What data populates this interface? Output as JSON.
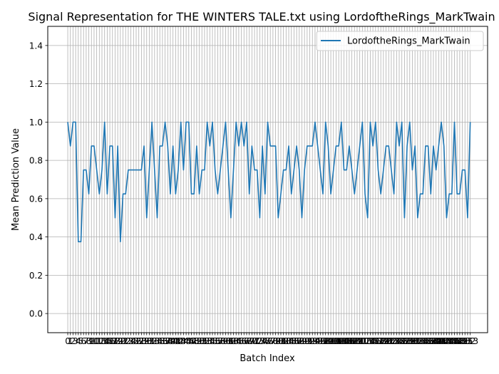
{
  "chart_data": {
    "type": "line",
    "title": "Signal Representation for THE WINTERS TALE.txt using LordoftheRings_MarkTwain",
    "xlabel": "Batch Index",
    "ylabel": "Mean Prediction Value",
    "xlim": [
      -3.8,
      79.8
    ],
    "ylim": [
      -0.1,
      1.5
    ],
    "yticks": [
      0.0,
      0.2,
      0.4,
      0.6,
      0.8,
      1.0,
      1.2,
      1.4
    ],
    "ytick_labels": [
      "0.0",
      "0.2",
      "0.4",
      "0.6",
      "0.8",
      "1.0",
      "1.2",
      "1.4"
    ],
    "grid": true,
    "legend_placement": "top-right",
    "series": [
      {
        "name": "LordoftheRings_MarkTwain",
        "color": "#1f77b4",
        "values": [
          1.0,
          0.875,
          1.0,
          1.0,
          0.375,
          0.375,
          0.75,
          0.75,
          0.625,
          0.875,
          0.875,
          0.75,
          0.625,
          0.75,
          1.0,
          0.625,
          0.875,
          0.875,
          0.5,
          0.875,
          0.375,
          0.625,
          0.625,
          0.75,
          0.75,
          0.75,
          0.75,
          0.75,
          0.75,
          0.875,
          0.5,
          0.75,
          1.0,
          0.75,
          0.5,
          0.875,
          0.875,
          1.0,
          0.875,
          0.625,
          0.875,
          0.625,
          0.75,
          1.0,
          0.75,
          1.0,
          1.0,
          0.625,
          0.625,
          0.875,
          0.625,
          0.75,
          0.75,
          1.0,
          0.875,
          1.0,
          0.75,
          0.625,
          0.75,
          0.875,
          1.0,
          0.75,
          0.5,
          0.75,
          1.0,
          0.875,
          1.0,
          0.875,
          1.0,
          0.625,
          0.875,
          0.75,
          0.75,
          0.5,
          0.875,
          0.625,
          1.0,
          0.875,
          0.875,
          0.875,
          0.5,
          0.625,
          0.75,
          0.75,
          0.875,
          0.625,
          0.75,
          0.875,
          0.75,
          0.5,
          0.75,
          0.875,
          0.875,
          0.875,
          1.0,
          0.875,
          0.75,
          0.625,
          1.0,
          0.875,
          0.625,
          0.75,
          0.875,
          0.875,
          1.0,
          0.75,
          0.75,
          0.875,
          0.75,
          0.625,
          0.75,
          0.875,
          1.0,
          0.625,
          0.5,
          1.0,
          0.875,
          1.0,
          0.75,
          0.625,
          0.75,
          0.875,
          0.875,
          0.75,
          0.625,
          1.0,
          0.875,
          1.0,
          0.5,
          0.875,
          1.0,
          0.75,
          0.875,
          0.5,
          0.625,
          0.625,
          0.875,
          0.875,
          0.625,
          0.875,
          0.75,
          0.875,
          1.0,
          0.875,
          0.5,
          0.625,
          0.625,
          1.0,
          0.625,
          0.625,
          0.75,
          0.75,
          0.5,
          1.0
        ]
      }
    ]
  }
}
